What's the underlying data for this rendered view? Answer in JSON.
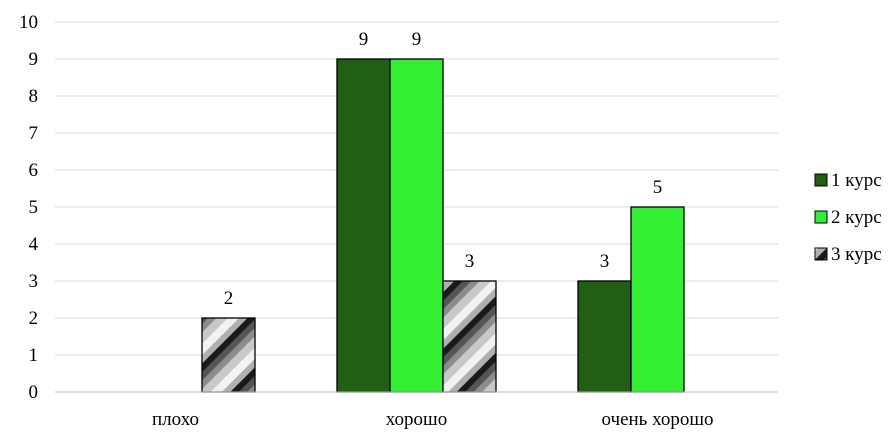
{
  "chart_data": {
    "type": "bar",
    "title": "",
    "xlabel": "",
    "ylabel": "",
    "categories": [
      "плохо",
      "хорошо",
      "очень хорошо"
    ],
    "ylim": [
      0,
      10
    ],
    "yticks": [
      0,
      1,
      2,
      3,
      4,
      5,
      6,
      7,
      8,
      9,
      10
    ],
    "grid": "horizontal",
    "legend_position": "right",
    "series": [
      {
        "name": "1 курс",
        "values": [
          0,
          9,
          3
        ],
        "color": "#215f14",
        "pattern": "solid"
      },
      {
        "name": "2 курс",
        "values": [
          0,
          9,
          5
        ],
        "color": "#33ee33",
        "pattern": "solid"
      },
      {
        "name": "3 курс",
        "values": [
          2,
          3,
          0
        ],
        "color": "#9a9a9a",
        "pattern": "diagonal-gradient-stripes"
      }
    ],
    "data_labels": [
      {
        "series": 0,
        "category": 0,
        "label": ""
      },
      {
        "series": 1,
        "category": 0,
        "label": ""
      },
      {
        "series": 2,
        "category": 0,
        "label": "2"
      },
      {
        "series": 0,
        "category": 1,
        "label": "9"
      },
      {
        "series": 1,
        "category": 1,
        "label": "9"
      },
      {
        "series": 2,
        "category": 1,
        "label": "3"
      },
      {
        "series": 0,
        "category": 2,
        "label": "3"
      },
      {
        "series": 1,
        "category": 2,
        "label": "5"
      },
      {
        "series": 2,
        "category": 2,
        "label": ""
      }
    ]
  }
}
